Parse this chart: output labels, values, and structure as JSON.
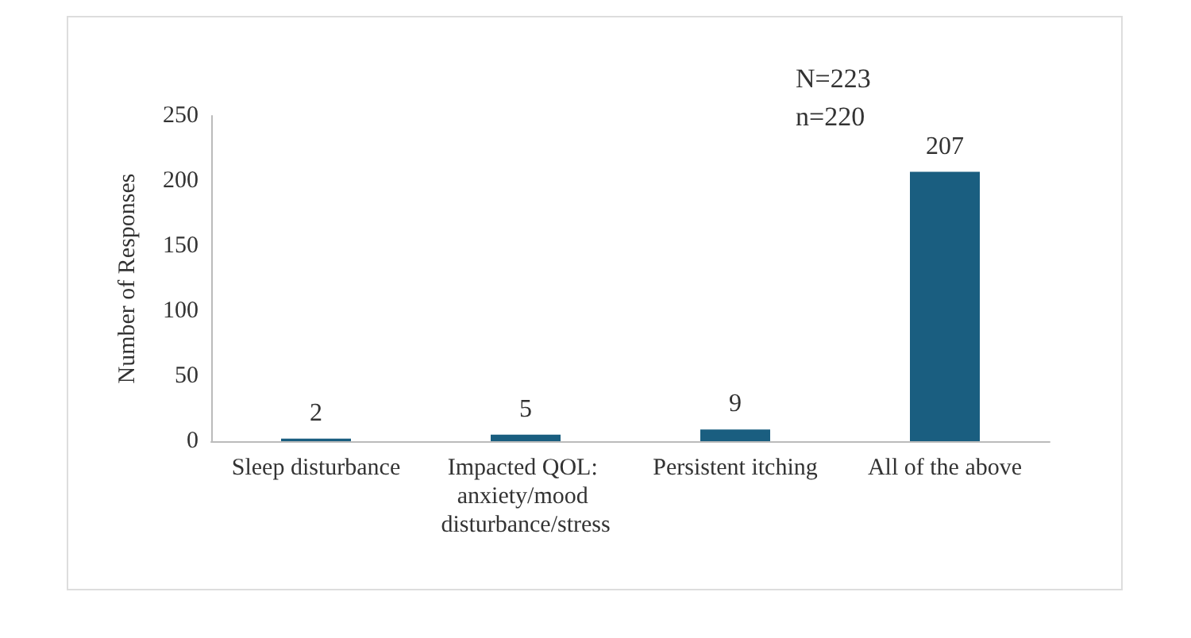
{
  "chart_data": {
    "type": "bar",
    "ylabel": "Number of Responses",
    "categories": [
      "Sleep disturbance",
      "Impacted QOL: anxiety/mood disturbance/stress",
      "Persistent itching",
      "All of the above"
    ],
    "values": [
      2,
      5,
      9,
      207
    ],
    "color": "#1a5e80",
    "ylim": [
      0,
      250
    ],
    "yticks": [
      0,
      50,
      100,
      150,
      200,
      250
    ],
    "grid": false,
    "data_labels": true,
    "annotations": [
      "N=223",
      "n=220"
    ]
  }
}
